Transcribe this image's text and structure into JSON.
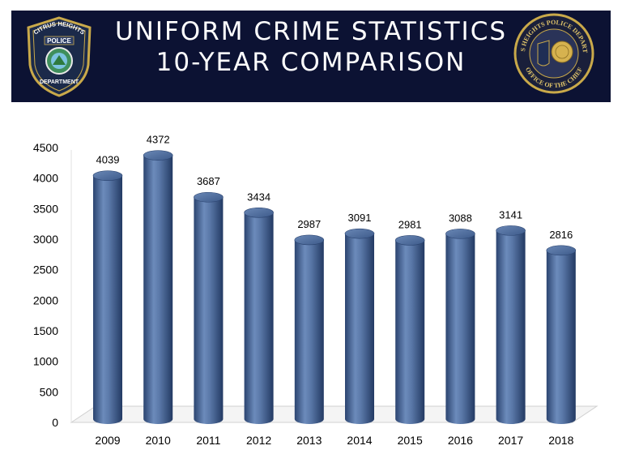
{
  "header": {
    "title_line1": "UNIFORM CRIME STATISTICS",
    "title_line2": "10-YEAR COMPARISON",
    "left_logo": {
      "icon": "police-badge-icon",
      "text_top": "CITRUS HEIGHTS",
      "text_mid": "POLICE",
      "text_bottom": "DEPARTMENT"
    },
    "right_logo": {
      "icon": "department-seal-icon",
      "text_top": "CITRUS HEIGHTS POLICE DEPARTMENT",
      "text_bottom": "OFFICE OF THE CHIEF"
    }
  },
  "colors": {
    "banner": "#0c1233",
    "bar": "#4a6a9a",
    "bar_dark": "#2b4470",
    "bar_light": "#7d9ac5"
  },
  "chart_data": {
    "type": "bar",
    "title": "",
    "xlabel": "",
    "ylabel": "",
    "categories": [
      "2009",
      "2010",
      "2011",
      "2012",
      "2013",
      "2014",
      "2015",
      "2016",
      "2017",
      "2018"
    ],
    "series": [
      {
        "values": [
          4039,
          4372,
          3687,
          3434,
          2987,
          3091,
          2981,
          3088,
          3141,
          2816
        ]
      }
    ],
    "ylim": [
      0,
      4500
    ],
    "yticks": [
      0,
      500,
      1000,
      1500,
      2000,
      2500,
      3000,
      3500,
      4000,
      4500
    ],
    "data_labels": true,
    "grid": false,
    "legend": "none",
    "style": "3d-cylinder"
  }
}
